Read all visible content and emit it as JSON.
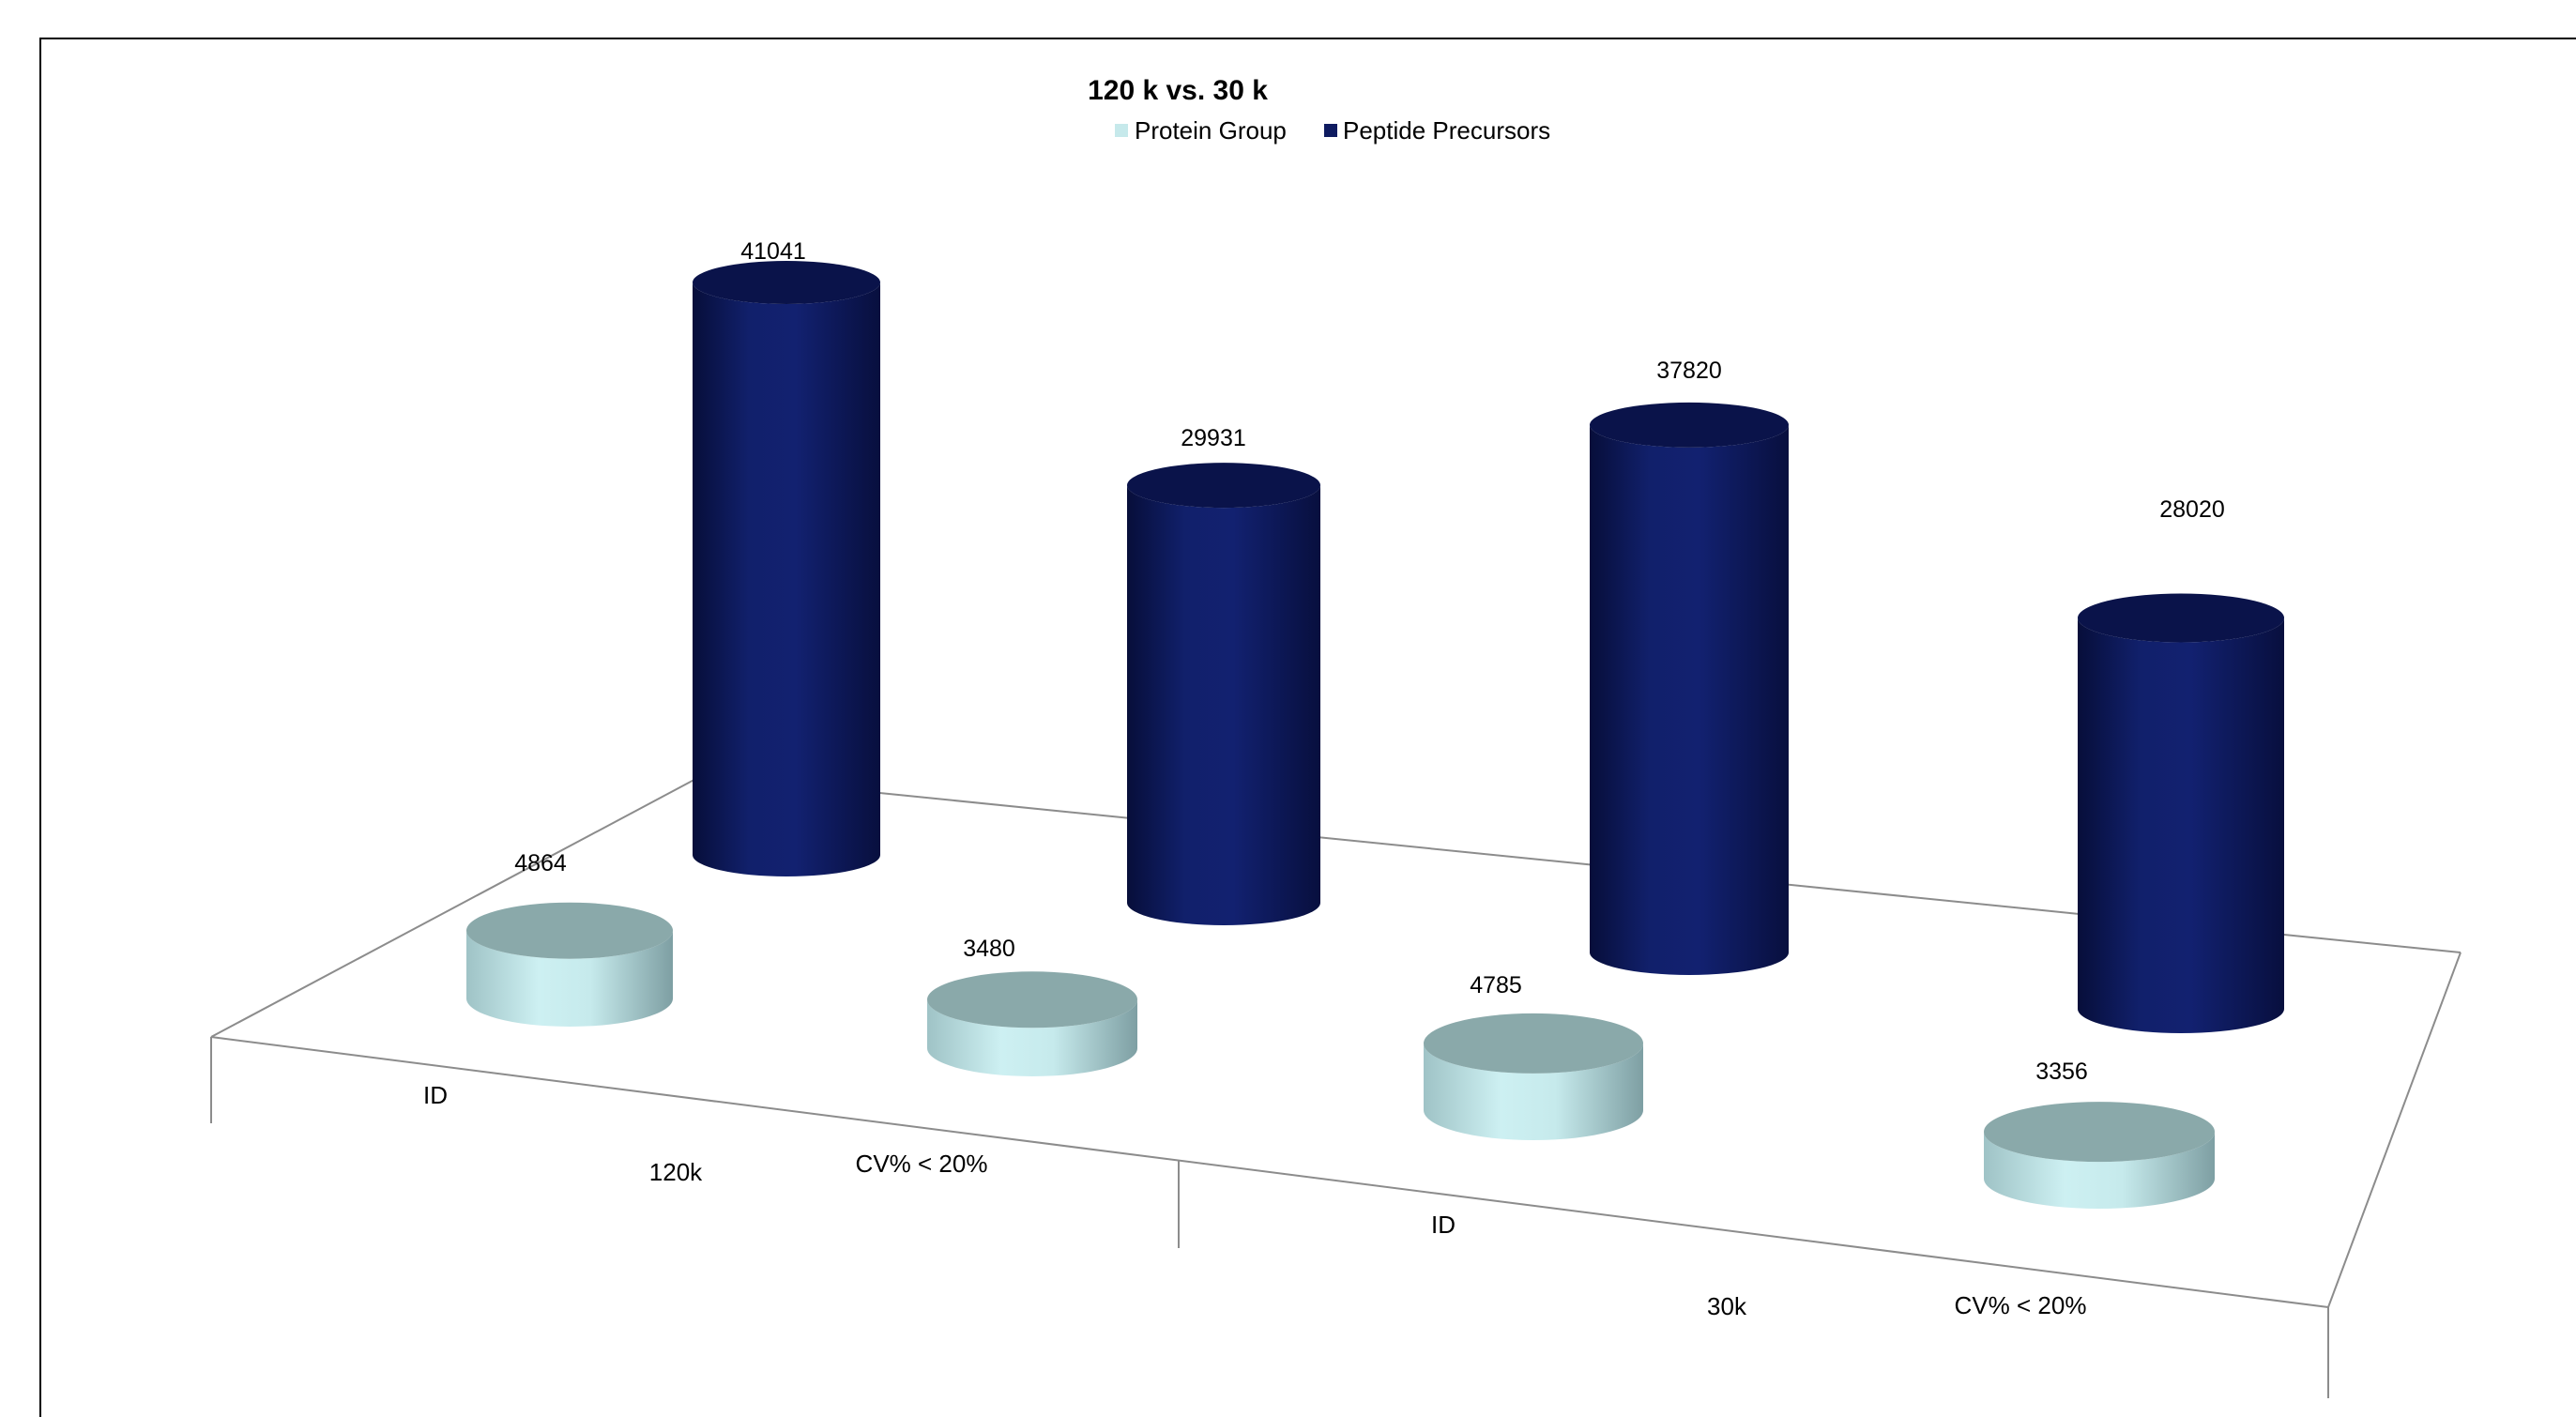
{
  "chart_data": {
    "type": "bar",
    "style": "3d-cylinder",
    "title": "120 k vs. 30 k",
    "categories": [
      {
        "group": "120k",
        "label": "ID"
      },
      {
        "group": "120k",
        "label": "CV% < 20%"
      },
      {
        "group": "30k",
        "label": "ID"
      },
      {
        "group": "30k",
        "label": "CV% < 20%"
      }
    ],
    "groups": [
      "120k",
      "30k"
    ],
    "series": [
      {
        "name": "Protein Group",
        "color": "#c6e9eb",
        "top_color": "#8aa9aa",
        "values": [
          4864,
          3480,
          4785,
          3356
        ]
      },
      {
        "name": "Peptide Precursors",
        "color": "#0e1b60",
        "top_color": "#0a134a",
        "values": [
          41041,
          29931,
          37820,
          28020
        ]
      }
    ],
    "legend_position": "top",
    "grid": false
  }
}
